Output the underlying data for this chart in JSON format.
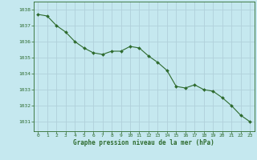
{
  "x": [
    0,
    1,
    2,
    3,
    4,
    5,
    6,
    7,
    8,
    9,
    10,
    11,
    12,
    13,
    14,
    15,
    16,
    17,
    18,
    19,
    20,
    21,
    22,
    23
  ],
  "y": [
    1037.7,
    1037.6,
    1037.0,
    1036.6,
    1036.0,
    1035.6,
    1035.3,
    1035.2,
    1035.4,
    1035.4,
    1035.7,
    1035.6,
    1035.1,
    1034.7,
    1034.2,
    1033.2,
    1033.1,
    1033.3,
    1033.0,
    1032.9,
    1032.5,
    1032.0,
    1031.4,
    1031.0
  ],
  "line_color": "#2d6a2d",
  "marker_color": "#2d6a2d",
  "bg_color": "#c5e8ef",
  "grid_color": "#b0d0da",
  "xlabel": "Graphe pression niveau de la mer (hPa)",
  "xlabel_color": "#2d6a2d",
  "tick_color": "#2d6a2d",
  "ylim_min": 1030.4,
  "ylim_max": 1038.5,
  "yticks": [
    1031,
    1032,
    1033,
    1034,
    1035,
    1036,
    1037,
    1038
  ],
  "xticks": [
    0,
    1,
    2,
    3,
    4,
    5,
    6,
    7,
    8,
    9,
    10,
    11,
    12,
    13,
    14,
    15,
    16,
    17,
    18,
    19,
    20,
    21,
    22,
    23
  ]
}
